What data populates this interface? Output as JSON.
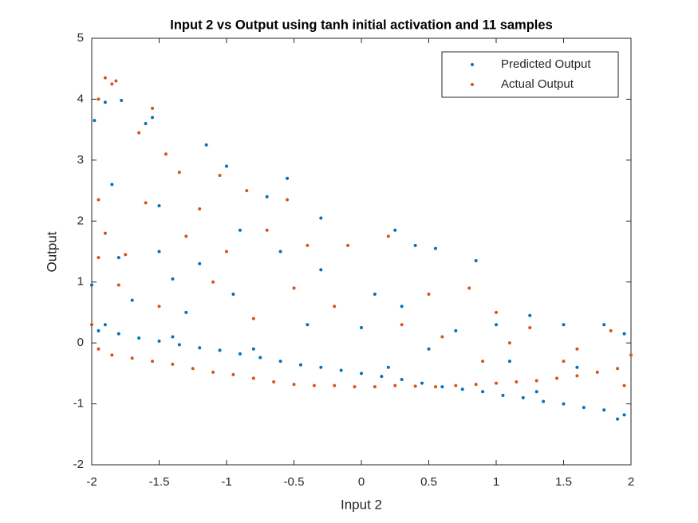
{
  "chart_data": {
    "type": "scatter",
    "title": "Input 2 vs Output using tanh initial activation and 11 samples",
    "x_label": "Input 2",
    "y_label": "Output",
    "xlim": [
      -2,
      2
    ],
    "ylim": [
      -2,
      5
    ],
    "xticks": [
      -2,
      -1.5,
      -1,
      -0.5,
      0,
      0.5,
      1,
      1.5,
      2
    ],
    "yticks": [
      -2,
      -1,
      0,
      1,
      2,
      3,
      4,
      5
    ],
    "legend": "upper right",
    "series": [
      {
        "name": "Predicted Output",
        "color": "#0072BD",
        "x": [
          -1.95,
          -1.8,
          -1.65,
          -1.5,
          -1.35,
          -1.2,
          -1.05,
          -0.9,
          -0.75,
          -0.6,
          -0.45,
          -0.3,
          -0.15,
          0,
          0.15,
          0.3,
          0.45,
          0.6,
          0.75,
          0.9,
          1.05,
          1.2,
          1.35,
          1.5,
          1.65,
          1.8,
          1.95,
          -1.9,
          -1.4,
          -0.8,
          0.2,
          1.3,
          1.9,
          -1.98,
          -1.9,
          -1.78,
          -1.85,
          -1.6,
          -1.55,
          -1.5,
          -1.15,
          -1.0,
          -0.7,
          -0.55,
          -0.3,
          0.25,
          0.4,
          0.55,
          0.85,
          1.25,
          1.5,
          1.8,
          1.95,
          -1.8,
          -1.5,
          -1.2,
          -0.9,
          -0.6,
          -0.3,
          0.1,
          0.3,
          0.7,
          1.0,
          -1.7,
          -1.3,
          -0.95,
          -0.4,
          0.0,
          0.5,
          1.1,
          1.6,
          -2.0,
          -1.4
        ],
        "values": [
          0.2,
          0.15,
          0.08,
          0.03,
          -0.03,
          -0.08,
          -0.12,
          -0.18,
          -0.24,
          -0.3,
          -0.36,
          -0.4,
          -0.45,
          -0.5,
          -0.55,
          -0.6,
          -0.66,
          -0.72,
          -0.76,
          -0.8,
          -0.86,
          -0.9,
          -0.96,
          -1.0,
          -1.06,
          -1.1,
          -1.18,
          0.3,
          0.1,
          -0.1,
          -0.4,
          -0.8,
          -1.25,
          3.65,
          3.95,
          3.98,
          2.6,
          3.6,
          3.7,
          2.25,
          3.25,
          2.9,
          2.4,
          2.7,
          2.05,
          1.85,
          1.6,
          1.55,
          1.35,
          0.45,
          0.3,
          0.3,
          0.15,
          1.4,
          1.5,
          1.3,
          1.85,
          1.5,
          1.2,
          0.8,
          0.6,
          0.2,
          0.3,
          0.7,
          0.5,
          0.8,
          0.3,
          0.25,
          -0.1,
          -0.3,
          -0.4,
          0.95,
          1.05
        ]
      },
      {
        "name": "Actual Output",
        "color": "#D95319",
        "x": [
          -1.95,
          -1.85,
          -1.7,
          -1.55,
          -1.4,
          -1.25,
          -1.1,
          -0.95,
          -0.8,
          -0.65,
          -0.5,
          -0.35,
          -0.2,
          -0.05,
          0.1,
          0.25,
          0.4,
          0.55,
          0.7,
          0.85,
          1.0,
          1.15,
          1.3,
          1.45,
          1.6,
          1.75,
          1.9,
          2.0,
          1.95,
          1.5,
          -1.95,
          -1.9,
          -1.82,
          -1.85,
          -1.65,
          -1.55,
          -1.45,
          -1.35,
          -1.2,
          -1.05,
          -0.85,
          -0.55,
          -1.95,
          -1.9,
          -1.75,
          -1.6,
          -1.3,
          -1.0,
          -0.7,
          -0.4,
          -0.1,
          0.2,
          0.5,
          0.8,
          1.0,
          1.25,
          1.6,
          1.85,
          -1.95,
          -1.8,
          -1.5,
          -1.1,
          -0.8,
          -0.5,
          -0.2,
          0.3,
          0.6,
          1.1,
          -2.0,
          0.9
        ],
        "values": [
          -0.1,
          -0.2,
          -0.25,
          -0.3,
          -0.35,
          -0.42,
          -0.48,
          -0.52,
          -0.58,
          -0.64,
          -0.68,
          -0.7,
          -0.7,
          -0.72,
          -0.72,
          -0.7,
          -0.71,
          -0.72,
          -0.7,
          -0.68,
          -0.66,
          -0.64,
          -0.62,
          -0.58,
          -0.54,
          -0.48,
          -0.42,
          -0.2,
          -0.7,
          -0.3,
          4.0,
          4.35,
          4.3,
          4.25,
          3.45,
          3.85,
          3.1,
          2.8,
          2.2,
          2.75,
          2.5,
          2.35,
          2.35,
          1.8,
          1.45,
          2.3,
          1.75,
          1.5,
          1.85,
          1.6,
          1.6,
          1.75,
          0.8,
          0.9,
          0.5,
          0.25,
          -0.1,
          0.2,
          1.4,
          0.95,
          0.6,
          1.0,
          0.4,
          0.9,
          0.6,
          0.3,
          0.1,
          0.0,
          0.3,
          -0.3
        ]
      }
    ]
  }
}
